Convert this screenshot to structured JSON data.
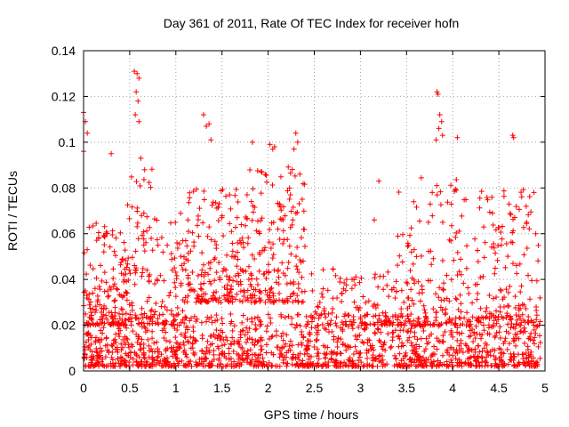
{
  "chart_data": {
    "type": "scatter",
    "title": "Day 361 of 2011, Rate Of TEC Index for receiver hofn",
    "xlabel": "GPS time / hours",
    "ylabel": "ROTI / TECUs",
    "xlim": [
      0,
      5
    ],
    "ylim": [
      0,
      0.14
    ],
    "x_ticks": [
      "0",
      "0.5",
      "1",
      "1.5",
      "2",
      "2.5",
      "3",
      "3.5",
      "4",
      "4.5",
      "5"
    ],
    "y_ticks": [
      "0",
      "0.02",
      "0.04",
      "0.06",
      "0.08",
      "0.1",
      "0.12",
      "0.14"
    ],
    "grid": true,
    "marker": "+",
    "color": "#ff0000",
    "notable_points": [
      {
        "x": 0.0,
        "y": 0.113
      },
      {
        "x": 0.02,
        "y": 0.109
      },
      {
        "x": 0.04,
        "y": 0.104
      },
      {
        "x": 0.0,
        "y": 0.096
      },
      {
        "x": 0.3,
        "y": 0.095
      },
      {
        "x": 0.55,
        "y": 0.131
      },
      {
        "x": 0.58,
        "y": 0.13
      },
      {
        "x": 0.6,
        "y": 0.128
      },
      {
        "x": 0.57,
        "y": 0.122
      },
      {
        "x": 0.59,
        "y": 0.118
      },
      {
        "x": 0.56,
        "y": 0.112
      },
      {
        "x": 0.6,
        "y": 0.109
      },
      {
        "x": 0.62,
        "y": 0.093
      },
      {
        "x": 1.3,
        "y": 0.112
      },
      {
        "x": 1.33,
        "y": 0.107
      },
      {
        "x": 1.36,
        "y": 0.108
      },
      {
        "x": 1.38,
        "y": 0.101
      },
      {
        "x": 1.83,
        "y": 0.1
      },
      {
        "x": 2.02,
        "y": 0.099
      },
      {
        "x": 2.05,
        "y": 0.097
      },
      {
        "x": 2.07,
        "y": 0.098
      },
      {
        "x": 2.3,
        "y": 0.104
      },
      {
        "x": 2.32,
        "y": 0.1
      },
      {
        "x": 2.28,
        "y": 0.097
      },
      {
        "x": 3.83,
        "y": 0.122
      },
      {
        "x": 3.84,
        "y": 0.121
      },
      {
        "x": 3.86,
        "y": 0.112
      },
      {
        "x": 3.88,
        "y": 0.109
      },
      {
        "x": 3.85,
        "y": 0.106
      },
      {
        "x": 3.82,
        "y": 0.101
      },
      {
        "x": 3.89,
        "y": 0.103
      },
      {
        "x": 4.05,
        "y": 0.102
      },
      {
        "x": 4.65,
        "y": 0.103
      },
      {
        "x": 4.66,
        "y": 0.102
      },
      {
        "x": 4.8,
        "y": 0.065
      },
      {
        "x": 4.88,
        "y": 0.078
      },
      {
        "x": 4.9,
        "y": 0.06
      },
      {
        "x": 3.2,
        "y": 0.083
      },
      {
        "x": 3.15,
        "y": 0.066
      },
      {
        "x": 2.85,
        "y": 0.04
      }
    ],
    "clusters": [
      {
        "x_range": [
          0.0,
          4.95
        ],
        "y_range": [
          0.002,
          0.025
        ],
        "count": 1400
      },
      {
        "x_range": [
          0.0,
          0.45
        ],
        "y_range": [
          0.02,
          0.065
        ],
        "count": 140
      },
      {
        "x_range": [
          0.45,
          0.75
        ],
        "y_range": [
          0.02,
          0.09
        ],
        "count": 90
      },
      {
        "x_range": [
          0.75,
          1.1
        ],
        "y_range": [
          0.02,
          0.07
        ],
        "count": 70
      },
      {
        "x_range": [
          1.1,
          1.8
        ],
        "y_range": [
          0.03,
          0.08
        ],
        "count": 200
      },
      {
        "x_range": [
          1.8,
          2.4
        ],
        "y_range": [
          0.03,
          0.09
        ],
        "count": 180
      },
      {
        "x_range": [
          2.4,
          3.4
        ],
        "y_range": [
          0.02,
          0.045
        ],
        "count": 120
      },
      {
        "x_range": [
          3.4,
          4.1
        ],
        "y_range": [
          0.02,
          0.085
        ],
        "count": 160
      },
      {
        "x_range": [
          4.1,
          4.95
        ],
        "y_range": [
          0.02,
          0.08
        ],
        "count": 160
      }
    ]
  }
}
